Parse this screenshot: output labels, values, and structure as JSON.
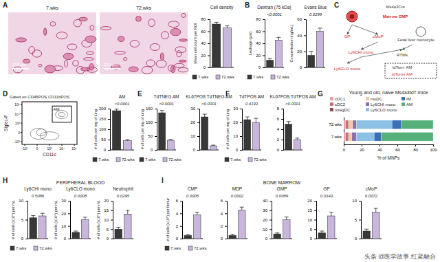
{
  "chart_data": [
    {
      "type": "bar",
      "title": "Cell density",
      "ylabel": "Mean cell count per ROI",
      "categories": [
        "7.wks",
        "72.wks"
      ],
      "values": [
        72,
        66
      ],
      "errors": [
        3,
        3
      ],
      "colors": [
        "#383838",
        "#c8b6dd"
      ],
      "ylim": [
        0,
        80
      ],
      "yticks": [
        0,
        20,
        40,
        60,
        80
      ],
      "tick_labels": "y",
      "legend": "bottom"
    },
    {
      "type": "bar",
      "title": "Dextran (75 kDa)",
      "annotation": "<0.0001",
      "ylabel": "Leakage (μm)",
      "categories": [
        "7.wks",
        "72.wks"
      ],
      "values": [
        12,
        45
      ],
      "errors": [
        3,
        5
      ],
      "colors": [
        "#383838",
        "#c8b6dd"
      ],
      "ylim": [
        0,
        80
      ],
      "yticks": [
        0,
        20,
        40,
        60,
        80
      ],
      "tick_labels": "y",
      "legend": "bottom"
    },
    {
      "type": "bar",
      "title": "Evans Blue",
      "annotation": "0.0299",
      "ylabel": "Concentration (ng/mL)",
      "categories": [
        "7.wks",
        "72.wks"
      ],
      "values": [
        15,
        45
      ],
      "errors": [
        5,
        4
      ],
      "colors": [
        "#383838",
        "#c8b6dd"
      ],
      "ylim": [
        0,
        60
      ],
      "yticks": [
        0,
        20,
        40,
        60
      ],
      "tick_labels": "y"
    },
    {
      "type": "bar",
      "title": "AM",
      "annotation": "<0.0001",
      "ylabel": "# of cells per mg of lung",
      "categories": [
        "7.wks",
        "72.wks"
      ],
      "values": [
        190,
        45
      ],
      "errors": [
        8,
        5
      ],
      "colors": [
        "#383838",
        "#c8b6dd"
      ],
      "ylim": [
        0,
        200
      ],
      "yticks": [
        0,
        50,
        100,
        150,
        200
      ],
      "tick_labels": "y",
      "legend": "bottom"
    },
    {
      "type": "bar",
      "title": "TdTNEG AM",
      "annotation": "<0.0001",
      "ylabel": "# of cells per mg of lung",
      "categories": [
        "7.wks",
        "72.wks"
      ],
      "values": [
        135,
        35
      ],
      "errors": [
        8,
        3
      ],
      "colors": [
        "#383838",
        "#c8b6dd"
      ],
      "ylim": [
        0,
        150
      ],
      "yticks": [
        0,
        50,
        100,
        150
      ],
      "tick_labels": "y",
      "legend": "bottom"
    },
    {
      "type": "bar",
      "title": "Ki-67POS TdTNEG AM",
      "annotation": "<0.0001",
      "categories": [
        "7.wks",
        "72.wks"
      ],
      "values": [
        24,
        3
      ],
      "errors": [
        2,
        0.5
      ],
      "colors": [
        "#383838",
        "#c8b6dd"
      ],
      "ylim": [
        0,
        30
      ],
      "yticks": [
        0,
        10,
        20,
        30
      ],
      "tick_labels": "y"
    },
    {
      "type": "bar",
      "title": "TdTPOS AM",
      "annotation": "0.4193",
      "ylabel": "# of cells per mg of lung",
      "categories": [
        "7.wks",
        "72.wks"
      ],
      "values": [
        22,
        20
      ],
      "errors": [
        2,
        3
      ],
      "colors": [
        "#383838",
        "#c8b6dd"
      ],
      "ylim": [
        0,
        30
      ],
      "yticks": [
        0,
        10,
        20,
        30
      ],
      "tick_labels": "y",
      "legend": "bottom"
    },
    {
      "type": "bar",
      "title": "Ki-67POS TdTPOS AM",
      "annotation": "<0.0001",
      "categories": [
        "7.wks",
        "72.wks"
      ],
      "values": [
        5,
        2
      ],
      "errors": [
        0.5,
        0.3
      ],
      "colors": [
        "#383838",
        "#c8b6dd"
      ],
      "ylim": [
        0,
        8
      ],
      "yticks": [
        0,
        2,
        4,
        6,
        8
      ],
      "tick_labels": "y"
    },
    {
      "type": "bar",
      "orientation": "horizontal",
      "stacked": true,
      "title": "Young and old, naive Ms4a3tdT mice",
      "xlabel": "% of MNPs",
      "categories": [
        "72.wks",
        "7.wks"
      ],
      "xlim": [
        0,
        100
      ],
      "xticks": [
        0,
        20,
        40,
        60,
        80,
        100
      ],
      "legend": "top",
      "series": [
        {
          "name": "cDC1",
          "color": "#e8a0a8",
          "values": [
            2,
            2
          ]
        },
        {
          "name": "cDC2",
          "color": "#c96f7c",
          "values": [
            3,
            3
          ]
        },
        {
          "name": "mregDC",
          "color": "#8e4a63",
          "values": [
            1,
            1
          ]
        },
        {
          "name": "moDC",
          "color": "#f2c9a0",
          "values": [
            4,
            3
          ]
        },
        {
          "name": "Ly6CHI mono",
          "color": "#8a70b0",
          "values": [
            4,
            5
          ]
        },
        {
          "name": "Ly6CLO mono",
          "color": "#8cc0e4",
          "values": [
            40,
            20
          ]
        },
        {
          "name": "IM",
          "color": "#3b6fb6",
          "values": [
            10,
            8
          ]
        },
        {
          "name": "AM",
          "color": "#55b07a",
          "values": [
            36,
            58
          ]
        }
      ]
    },
    {
      "type": "bar",
      "title": "Ly6CHI mono",
      "annotation": "0.5086",
      "ylabel": "# of cells (x10⁴) per mL",
      "categories": [
        "7.wks",
        "72.wks"
      ],
      "values": [
        5.5,
        6
      ],
      "errors": [
        0.6,
        0.7
      ],
      "colors": [
        "#383838",
        "#c8b6dd"
      ],
      "ylim": [
        0,
        10
      ],
      "yticks": [
        0,
        5,
        10
      ],
      "tick_labels": "y",
      "legend": "bottom"
    },
    {
      "type": "bar",
      "title": "Ly6CLO mono",
      "annotation": "0.0008",
      "ylabel": "# of cells (x10⁴) per mL",
      "categories": [
        "7.wks",
        "72.wks"
      ],
      "values": [
        5,
        15
      ],
      "errors": [
        1,
        2
      ],
      "colors": [
        "#383838",
        "#c8b6dd"
      ],
      "ylim": [
        0,
        30
      ],
      "yticks": [
        0,
        10,
        20,
        30
      ],
      "tick_labels": "y"
    },
    {
      "type": "bar",
      "title": "Neutrophil",
      "annotation": "0.0295",
      "ylabel": "# of cells (x10⁴) per mL",
      "categories": [
        "7.wks",
        "72.wks"
      ],
      "values": [
        5,
        13
      ],
      "errors": [
        1,
        2
      ],
      "colors": [
        "#383838",
        "#c8b6dd"
      ],
      "ylim": [
        0,
        20
      ],
      "yticks": [
        0,
        5,
        10,
        15,
        20
      ],
      "tick_labels": "y"
    },
    {
      "type": "bar",
      "title": "CMP",
      "annotation": "0.0005",
      "ylabel": "# of cells (x10⁵) per femur",
      "categories": [
        "7.wks",
        "72.wks"
      ],
      "values": [
        0.5,
        3.8
      ],
      "errors": [
        0.2,
        0.4
      ],
      "colors": [
        "#383838",
        "#c8b6dd"
      ],
      "ylim": [
        0,
        6
      ],
      "yticks": [
        0,
        2,
        4,
        6
      ],
      "tick_labels": "y",
      "legend": "bottom"
    },
    {
      "type": "bar",
      "title": "MDP",
      "annotation": "0.0002",
      "categories": [
        "7.wks",
        "72.wks"
      ],
      "values": [
        0.5,
        4.5
      ],
      "errors": [
        0.2,
        0.5
      ],
      "colors": [
        "#383838",
        "#c8b6dd"
      ],
      "ylim": [
        0,
        6
      ],
      "yticks": [
        0,
        2,
        4,
        6
      ],
      "tick_labels": "y"
    },
    {
      "type": "bar",
      "title": "GMP",
      "annotation": "0.0089",
      "categories": [
        "7.wks",
        "72.wks"
      ],
      "values": [
        5,
        20
      ],
      "errors": [
        1,
        3
      ],
      "colors": [
        "#383838",
        "#c8b6dd"
      ],
      "ylim": [
        0,
        40
      ],
      "yticks": [
        0,
        10,
        20,
        30,
        40
      ],
      "tick_labels": "y"
    },
    {
      "type": "bar",
      "title": "GP",
      "annotation": "0.0143",
      "categories": [
        "7.wks",
        "72.wks"
      ],
      "values": [
        3,
        12
      ],
      "errors": [
        1,
        2
      ],
      "colors": [
        "#383838",
        "#c8b6dd"
      ],
      "ylim": [
        0,
        20
      ],
      "yticks": [
        0,
        5,
        10,
        15,
        20
      ],
      "tick_labels": "y"
    },
    {
      "type": "bar",
      "title": "cMoP",
      "annotation": "0.0072",
      "categories": [
        "7.wks",
        "72.wks"
      ],
      "values": [
        2,
        7
      ],
      "errors": [
        0.5,
        1
      ],
      "colors": [
        "#383838",
        "#c8b6dd"
      ],
      "ylim": [
        0,
        10
      ],
      "yticks": [
        0,
        5,
        10
      ],
      "tick_labels": "y"
    }
  ],
  "panel_labels": [
    "A",
    "B",
    "C",
    "D",
    "E",
    "F",
    "G",
    "H",
    "I"
  ],
  "headings": {
    "blood": "PERIPHERAL BLOOD",
    "marrow": "BONE MARROW"
  },
  "histology": {
    "labels": [
      "7.wks",
      "72.wks"
    ],
    "scale_bar": "200 μm"
  },
  "flow_plot": {
    "title": "Gated on CD45POS CD11bPOS",
    "xlabel": "CD11c",
    "ylabel": "Siglec-F",
    "xticks": [
      "-10³",
      "0",
      "10³",
      "10⁴",
      "10⁵"
    ],
    "yticks": [
      "-10³",
      "0",
      "10³",
      "10⁴",
      "10⁵"
    ],
    "gate": "AM"
  },
  "diagram": {
    "nodes": [
      {
        "label": "Ms4a3Cre",
        "color": "#333333"
      },
      {
        "label": "Marrow GMP",
        "color": "#d62728"
      },
      {
        "label": "GP",
        "color": "#d62728"
      },
      {
        "label": "cMoP",
        "color": "#d62728"
      },
      {
        "label": "Ly6CHI mono",
        "color": "#d62728"
      },
      {
        "label": "Ly6CLO mono",
        "color": "#d62728"
      },
      {
        "label": "Fetal liver monocyte",
        "color": "#333333"
      },
      {
        "label": "RTMs",
        "color": "#333333"
      },
      {
        "label": "tdTom- AM",
        "color": "#333333"
      },
      {
        "label": "tdTom+ AM",
        "color": "#d62728"
      }
    ],
    "edges": [
      [
        1,
        2
      ],
      [
        1,
        3
      ],
      [
        3,
        4
      ],
      [
        4,
        5
      ],
      [
        4,
        7
      ],
      [
        6,
        7
      ]
    ]
  },
  "watermark": "头条 @医学故事.红蓝融合"
}
